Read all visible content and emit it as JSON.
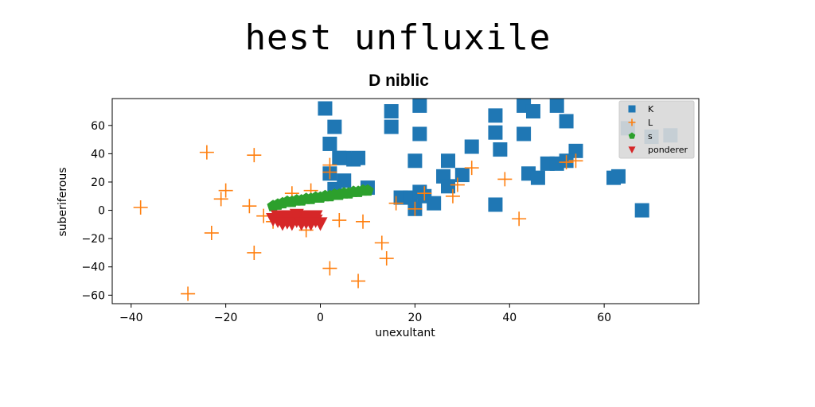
{
  "chart_data": {
    "type": "scatter",
    "suptitle": "hest unfluxile",
    "title": "D niblic",
    "xlabel": "unexultant",
    "ylabel": "suberiferous",
    "xlim": [
      -44,
      80
    ],
    "ylim": [
      -66,
      79
    ],
    "xticks": [
      -40,
      -20,
      0,
      20,
      40,
      60
    ],
    "yticks": [
      -60,
      -40,
      -20,
      0,
      20,
      40,
      60
    ],
    "legend_position": "top-right",
    "grid": false,
    "series": [
      {
        "name": "K",
        "marker": "square",
        "color": "#1f77b4",
        "points": [
          [
            1,
            72
          ],
          [
            21,
            74
          ],
          [
            15,
            70
          ],
          [
            43,
            74
          ],
          [
            50,
            74
          ],
          [
            45,
            70
          ],
          [
            2,
            47
          ],
          [
            3,
            59
          ],
          [
            15,
            59
          ],
          [
            37,
            67
          ],
          [
            21,
            54
          ],
          [
            37,
            55
          ],
          [
            43,
            54
          ],
          [
            52,
            63
          ],
          [
            4,
            37
          ],
          [
            5,
            37
          ],
          [
            7,
            36
          ],
          [
            8,
            37
          ],
          [
            32,
            45
          ],
          [
            38,
            43
          ],
          [
            54,
            42
          ],
          [
            65,
            58
          ],
          [
            70,
            52
          ],
          [
            74,
            53
          ],
          [
            20,
            35
          ],
          [
            27,
            35
          ],
          [
            26,
            24
          ],
          [
            30,
            25
          ],
          [
            44,
            26
          ],
          [
            46,
            23
          ],
          [
            48,
            33
          ],
          [
            50,
            33
          ],
          [
            52,
            35
          ],
          [
            62,
            23
          ],
          [
            63,
            24
          ],
          [
            2,
            26
          ],
          [
            5,
            21
          ],
          [
            3,
            15
          ],
          [
            10,
            16
          ],
          [
            17,
            9
          ],
          [
            19,
            9
          ],
          [
            22,
            10
          ],
          [
            24,
            5
          ],
          [
            27,
            17
          ],
          [
            37,
            4
          ],
          [
            20,
            1
          ],
          [
            21,
            13
          ],
          [
            68,
            0
          ]
        ]
      },
      {
        "name": "L",
        "marker": "plus",
        "color": "#ff7f0e",
        "points": [
          [
            -38,
            2
          ],
          [
            -24,
            41
          ],
          [
            -14,
            39
          ],
          [
            -20,
            14
          ],
          [
            -21,
            8
          ],
          [
            -23,
            -16
          ],
          [
            -15,
            3
          ],
          [
            -12,
            -4
          ],
          [
            -14,
            -30
          ],
          [
            -28,
            -59
          ],
          [
            -6,
            12
          ],
          [
            -2,
            14
          ],
          [
            2,
            27
          ],
          [
            2,
            32
          ],
          [
            2,
            -41
          ],
          [
            4,
            -7
          ],
          [
            8,
            -50
          ],
          [
            9,
            -8
          ],
          [
            13,
            -23
          ],
          [
            14,
            -34
          ],
          [
            16,
            5
          ],
          [
            20,
            1
          ],
          [
            22,
            12
          ],
          [
            28,
            10
          ],
          [
            29,
            18
          ],
          [
            32,
            30
          ],
          [
            39,
            22
          ],
          [
            42,
            -6
          ],
          [
            52,
            34
          ],
          [
            54,
            35
          ],
          [
            -3,
            -14
          ],
          [
            -10,
            -8
          ]
        ]
      },
      {
        "name": "s",
        "marker": "pentagon",
        "color": "#2ca02c",
        "points": [
          [
            -10,
            3
          ],
          [
            -9,
            4
          ],
          [
            -8,
            5
          ],
          [
            -7,
            6
          ],
          [
            -6,
            6
          ],
          [
            -5,
            7
          ],
          [
            -4,
            7
          ],
          [
            -3,
            8
          ],
          [
            -2,
            8
          ],
          [
            -1,
            9
          ],
          [
            0,
            9
          ],
          [
            1,
            10
          ],
          [
            2,
            10
          ],
          [
            3,
            11
          ],
          [
            4,
            11
          ],
          [
            5,
            12
          ],
          [
            6,
            12
          ],
          [
            7,
            13
          ],
          [
            8,
            13
          ],
          [
            9,
            14
          ],
          [
            10,
            14
          ]
        ]
      },
      {
        "name": "ponderer",
        "marker": "triangle_down",
        "color": "#d62728",
        "points": [
          [
            -10,
            -6
          ],
          [
            -9,
            -7
          ],
          [
            -8,
            -6
          ],
          [
            -7,
            -8
          ],
          [
            -6,
            -6
          ],
          [
            -5,
            -7
          ],
          [
            -4,
            -6
          ],
          [
            -3,
            -8
          ],
          [
            -2,
            -6
          ],
          [
            -1,
            -7
          ],
          [
            0,
            -9
          ],
          [
            -9,
            -4
          ],
          [
            -7,
            -4
          ],
          [
            -5,
            -3
          ],
          [
            -3,
            -4
          ],
          [
            -1,
            -4
          ],
          [
            -6,
            -9
          ],
          [
            -4,
            -9
          ],
          [
            -2,
            -9
          ],
          [
            -8,
            -9
          ]
        ]
      }
    ]
  }
}
